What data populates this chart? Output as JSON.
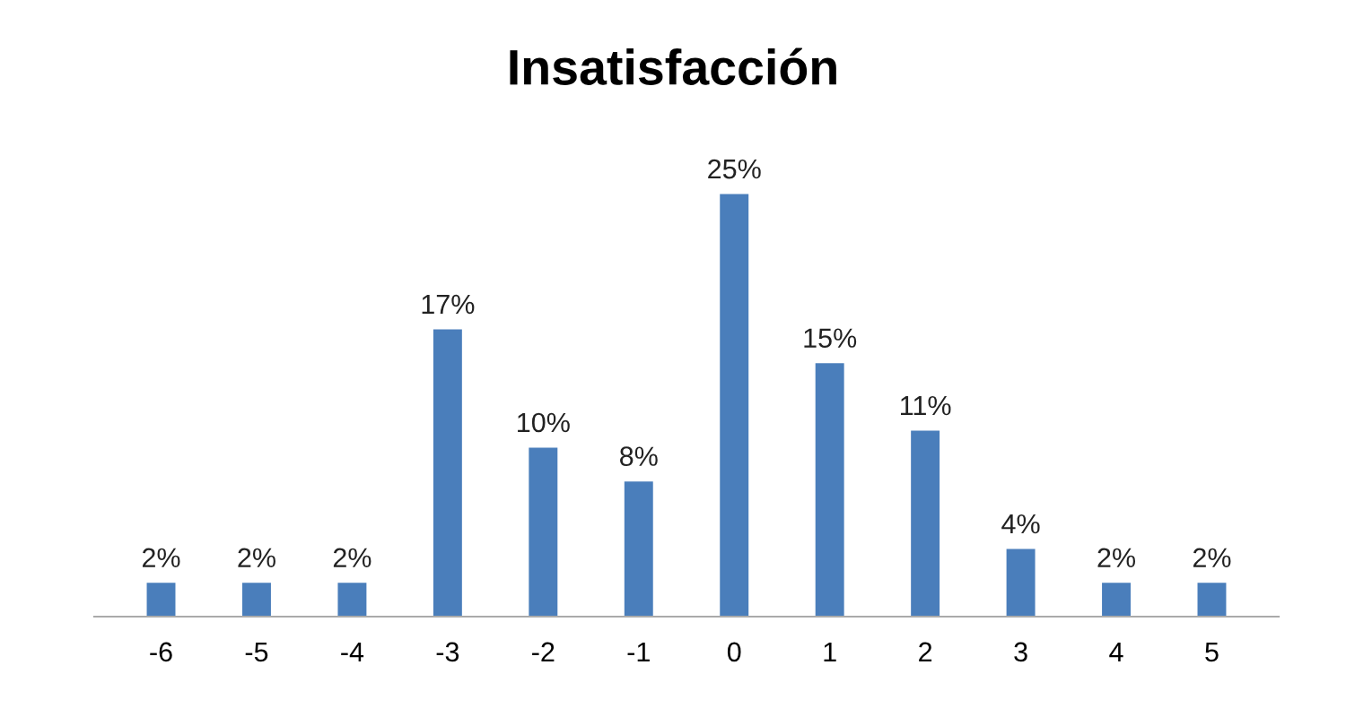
{
  "chart_data": {
    "type": "bar",
    "title": "Insatisfacción",
    "categories": [
      "-6",
      "-5",
      "-4",
      "-3",
      "-2",
      "-1",
      "0",
      "1",
      "2",
      "3",
      "4",
      "5"
    ],
    "values": [
      2,
      2,
      2,
      17,
      10,
      8,
      25,
      15,
      11,
      4,
      2,
      2
    ],
    "value_labels": [
      "2%",
      "2%",
      "2%",
      "17%",
      "10%",
      "8%",
      "25%",
      "15%",
      "11%",
      "4%",
      "2%",
      "2%"
    ],
    "color": "#4a7ebb",
    "grid": false,
    "legend": false
  }
}
